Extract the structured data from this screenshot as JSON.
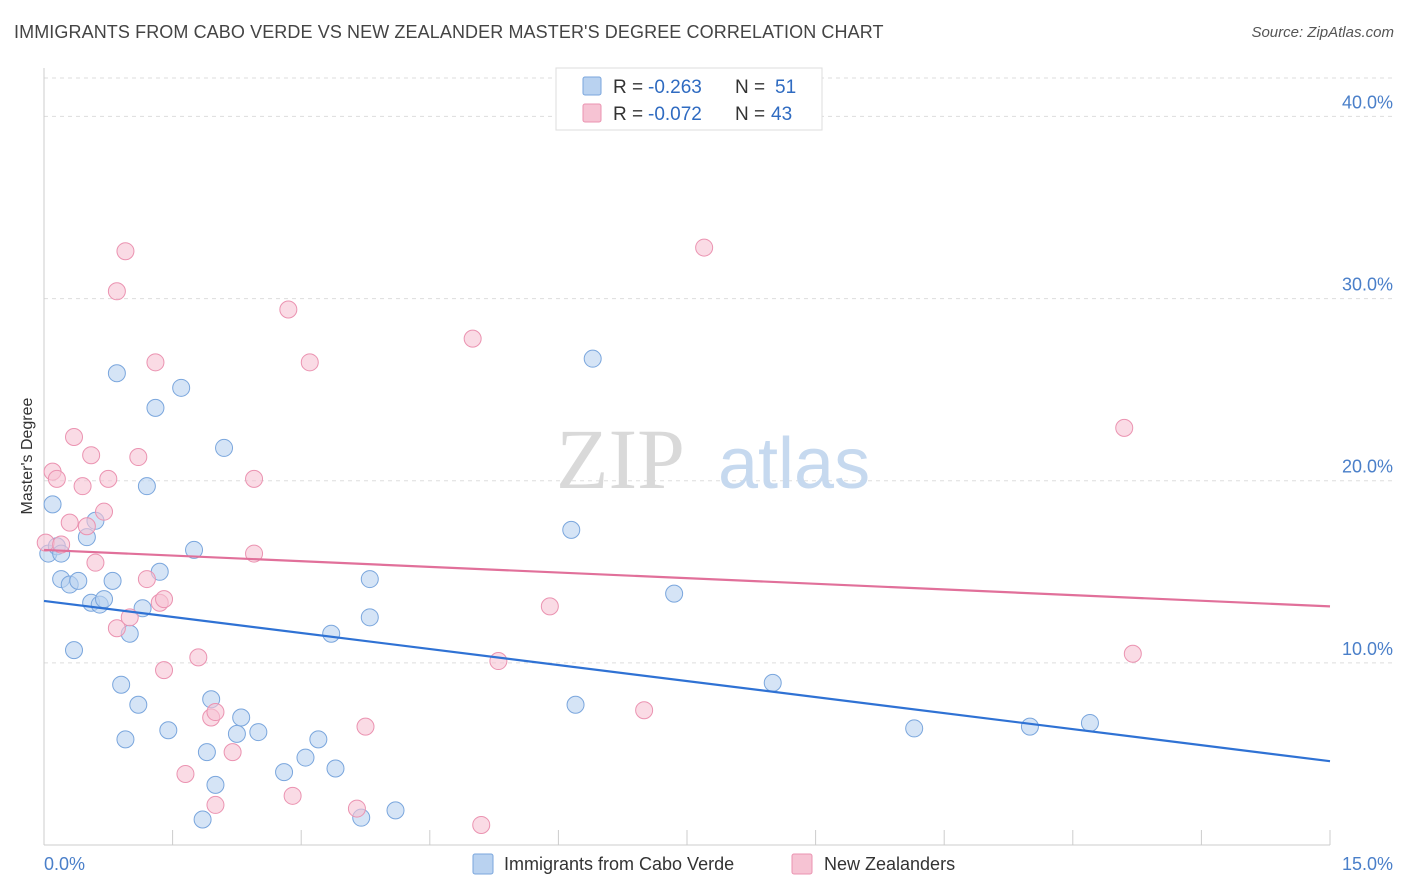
{
  "title": "IMMIGRANTS FROM CABO VERDE VS NEW ZEALANDER MASTER'S DEGREE CORRELATION CHART",
  "source": "Source: ZipAtlas.com",
  "watermark": {
    "zip": "ZIP",
    "atlas": "atlas"
  },
  "colors": {
    "blue_fill": "#b9d2f0",
    "blue_stroke": "#7aa6dd",
    "blue_line": "#2f72d4",
    "pink_fill": "#f6c3d3",
    "pink_stroke": "#eb93b1",
    "pink_line": "#e1709a",
    "tick_text": "#4a7fc9",
    "grid": "#dddddd"
  },
  "legend": {
    "rows": [
      {
        "series": "blue",
        "r_label": "R =",
        "r_value": "-0.263",
        "n_label": "N =",
        "n_value": "51"
      },
      {
        "series": "pink",
        "r_label": "R =",
        "r_value": "-0.072",
        "n_label": "N =",
        "n_value": "43"
      }
    ]
  },
  "chart_data": {
    "type": "scatter",
    "title": "IMMIGRANTS FROM CABO VERDE VS NEW ZEALANDER MASTER'S DEGREE CORRELATION CHART",
    "xlabel": "",
    "ylabel": "Master's Degree",
    "xlim": [
      0,
      15
    ],
    "ylim": [
      0,
      42
    ],
    "x_tick_labels": [
      {
        "value": 0,
        "label": "0.0%"
      },
      {
        "value": 15,
        "label": "15.0%"
      }
    ],
    "y_tick_labels": [
      {
        "value": 10,
        "label": "10.0%"
      },
      {
        "value": 20,
        "label": "20.0%"
      },
      {
        "value": 30,
        "label": "30.0%"
      },
      {
        "value": 40,
        "label": "40.0%"
      }
    ],
    "grid": true,
    "series": [
      {
        "name": "Immigrants from Cabo Verde",
        "color": "blue",
        "trend": {
          "x0": 0,
          "y0": 13.4,
          "x1": 15,
          "y1": 4.6
        },
        "points": [
          [
            0.05,
            16.0
          ],
          [
            0.1,
            18.7
          ],
          [
            0.15,
            16.4
          ],
          [
            0.2,
            16.0
          ],
          [
            0.2,
            14.6
          ],
          [
            0.3,
            14.3
          ],
          [
            0.35,
            10.7
          ],
          [
            0.4,
            14.5
          ],
          [
            0.5,
            16.9
          ],
          [
            0.55,
            13.3
          ],
          [
            0.6,
            17.8
          ],
          [
            0.65,
            13.2
          ],
          [
            0.7,
            13.5
          ],
          [
            0.8,
            14.5
          ],
          [
            0.85,
            25.9
          ],
          [
            0.9,
            8.8
          ],
          [
            0.95,
            5.8
          ],
          [
            1.0,
            11.6
          ],
          [
            1.1,
            7.7
          ],
          [
            1.15,
            13.0
          ],
          [
            1.2,
            19.7
          ],
          [
            1.3,
            24.0
          ],
          [
            1.35,
            15.0
          ],
          [
            1.45,
            6.3
          ],
          [
            1.6,
            25.1
          ],
          [
            1.75,
            16.2
          ],
          [
            1.85,
            1.4
          ],
          [
            1.9,
            5.1
          ],
          [
            1.95,
            8.0
          ],
          [
            2.0,
            3.3
          ],
          [
            2.1,
            21.8
          ],
          [
            2.25,
            6.1
          ],
          [
            2.3,
            7.0
          ],
          [
            2.5,
            6.2
          ],
          [
            2.8,
            4.0
          ],
          [
            3.05,
            4.8
          ],
          [
            3.2,
            5.8
          ],
          [
            3.35,
            11.6
          ],
          [
            3.4,
            4.2
          ],
          [
            3.8,
            14.6
          ],
          [
            3.8,
            12.5
          ],
          [
            3.7,
            1.5
          ],
          [
            4.1,
            1.9
          ],
          [
            6.15,
            17.3
          ],
          [
            6.2,
            7.7
          ],
          [
            6.4,
            26.7
          ],
          [
            7.35,
            13.8
          ],
          [
            8.5,
            8.9
          ],
          [
            10.15,
            6.4
          ],
          [
            11.5,
            6.5
          ],
          [
            12.2,
            6.7
          ]
        ]
      },
      {
        "name": "New Zealanders",
        "color": "pink",
        "trend": {
          "x0": 0,
          "y0": 16.2,
          "x1": 15,
          "y1": 13.1
        },
        "points": [
          [
            0.02,
            16.6
          ],
          [
            0.1,
            20.5
          ],
          [
            0.15,
            20.1
          ],
          [
            0.2,
            16.5
          ],
          [
            0.3,
            17.7
          ],
          [
            0.35,
            22.4
          ],
          [
            0.45,
            19.7
          ],
          [
            0.5,
            17.5
          ],
          [
            0.55,
            21.4
          ],
          [
            0.6,
            15.5
          ],
          [
            0.7,
            18.3
          ],
          [
            0.75,
            20.1
          ],
          [
            0.85,
            30.4
          ],
          [
            0.85,
            11.9
          ],
          [
            0.95,
            32.6
          ],
          [
            1.0,
            12.5
          ],
          [
            1.1,
            21.3
          ],
          [
            1.2,
            14.6
          ],
          [
            1.3,
            26.5
          ],
          [
            1.35,
            13.3
          ],
          [
            1.4,
            13.5
          ],
          [
            1.4,
            9.6
          ],
          [
            1.65,
            3.9
          ],
          [
            1.8,
            10.3
          ],
          [
            1.95,
            7.0
          ],
          [
            2.0,
            2.2
          ],
          [
            2.0,
            7.3
          ],
          [
            2.2,
            5.1
          ],
          [
            2.45,
            20.1
          ],
          [
            2.45,
            16.0
          ],
          [
            2.85,
            29.4
          ],
          [
            2.9,
            2.7
          ],
          [
            3.1,
            26.5
          ],
          [
            3.65,
            2.0
          ],
          [
            3.75,
            6.5
          ],
          [
            5.0,
            27.8
          ],
          [
            5.1,
            1.1
          ],
          [
            5.3,
            10.1
          ],
          [
            5.9,
            13.1
          ],
          [
            7.0,
            7.4
          ],
          [
            7.7,
            32.8
          ],
          [
            12.6,
            22.9
          ],
          [
            12.7,
            10.5
          ]
        ]
      }
    ]
  }
}
